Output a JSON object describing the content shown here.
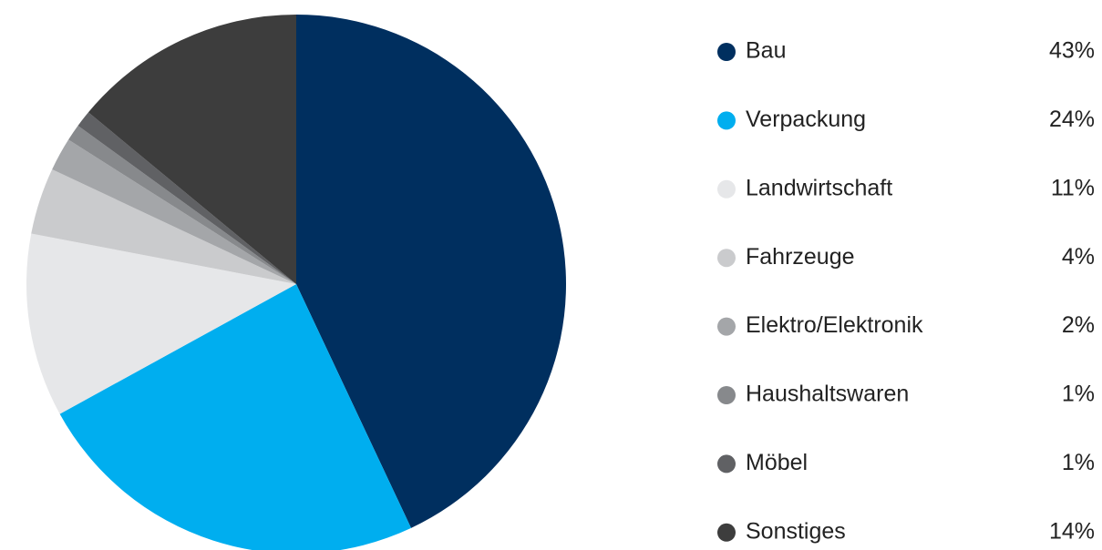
{
  "chart_data": {
    "type": "pie",
    "categories": [
      "Bau",
      "Verpackung",
      "Landwirtschaft",
      "Fahrzeuge",
      "Elektro/Elektronik",
      "Haushaltswaren",
      "Möbel",
      "Sonstiges"
    ],
    "values": [
      43,
      24,
      11,
      4,
      2,
      1,
      1,
      14
    ],
    "value_labels": [
      "43%",
      "24%",
      "11%",
      "4%",
      "2%",
      "1%",
      "1%",
      "14%"
    ],
    "colors": [
      "#002f5f",
      "#00aeef",
      "#e6e7e9",
      "#cacbcd",
      "#a4a6a9",
      "#87898c",
      "#606164",
      "#3d3d3d"
    ],
    "legend": "right"
  }
}
